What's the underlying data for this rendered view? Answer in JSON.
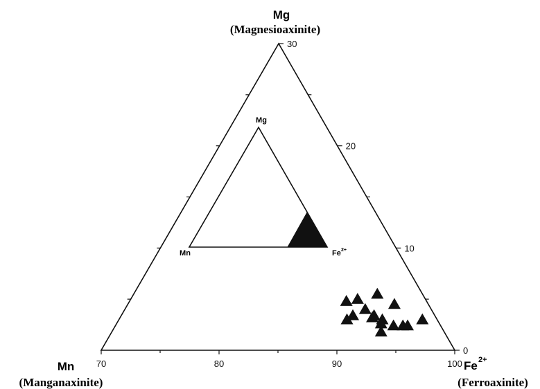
{
  "chart_data": {
    "type": "ternary-scatter",
    "vertices": {
      "top": {
        "symbol": "Mg",
        "name": "(Magnesioaxinite)"
      },
      "left": {
        "symbol": "Mn",
        "name": "(Manganaxinite)"
      },
      "right": {
        "symbol": "Fe",
        "superscript": "2+",
        "name": "(Ferroaxinite)"
      }
    },
    "bottom_axis": {
      "ticks": [
        70,
        80,
        90,
        100
      ],
      "labels": [
        "70",
        "80",
        "90",
        "100"
      ]
    },
    "right_axis": {
      "ticks": [
        0,
        10,
        20,
        30
      ],
      "labels": [
        "0",
        "10",
        "20",
        "30"
      ]
    },
    "inset": {
      "labels": {
        "top": "Mg",
        "left": "Mn",
        "right": "Fe",
        "right_superscript": "2+"
      }
    },
    "marker": "filled-triangle",
    "marker_color": "#111111",
    "points": [
      {
        "fe": 92.0,
        "mg": 4.8
      },
      {
        "fe": 93.0,
        "mg": 5.0
      },
      {
        "fe": 94.8,
        "mg": 5.5
      },
      {
        "fe": 96.0,
        "mg": 4.5
      },
      {
        "fe": 92.2,
        "mg": 3.4
      },
      {
        "fe": 93.4,
        "mg": 4.0
      },
      {
        "fe": 94.0,
        "mg": 3.4
      },
      {
        "fe": 94.6,
        "mg": 3.0
      },
      {
        "fe": 93.8,
        "mg": 3.2
      },
      {
        "fe": 91.6,
        "mg": 3.0
      },
      {
        "fe": 94.4,
        "mg": 2.6
      },
      {
        "fe": 95.4,
        "mg": 2.4
      },
      {
        "fe": 96.2,
        "mg": 2.4
      },
      {
        "fe": 96.6,
        "mg": 2.4
      },
      {
        "fe": 98.0,
        "mg": 3.0
      },
      {
        "fe": 94.2,
        "mg": 1.8
      }
    ]
  }
}
